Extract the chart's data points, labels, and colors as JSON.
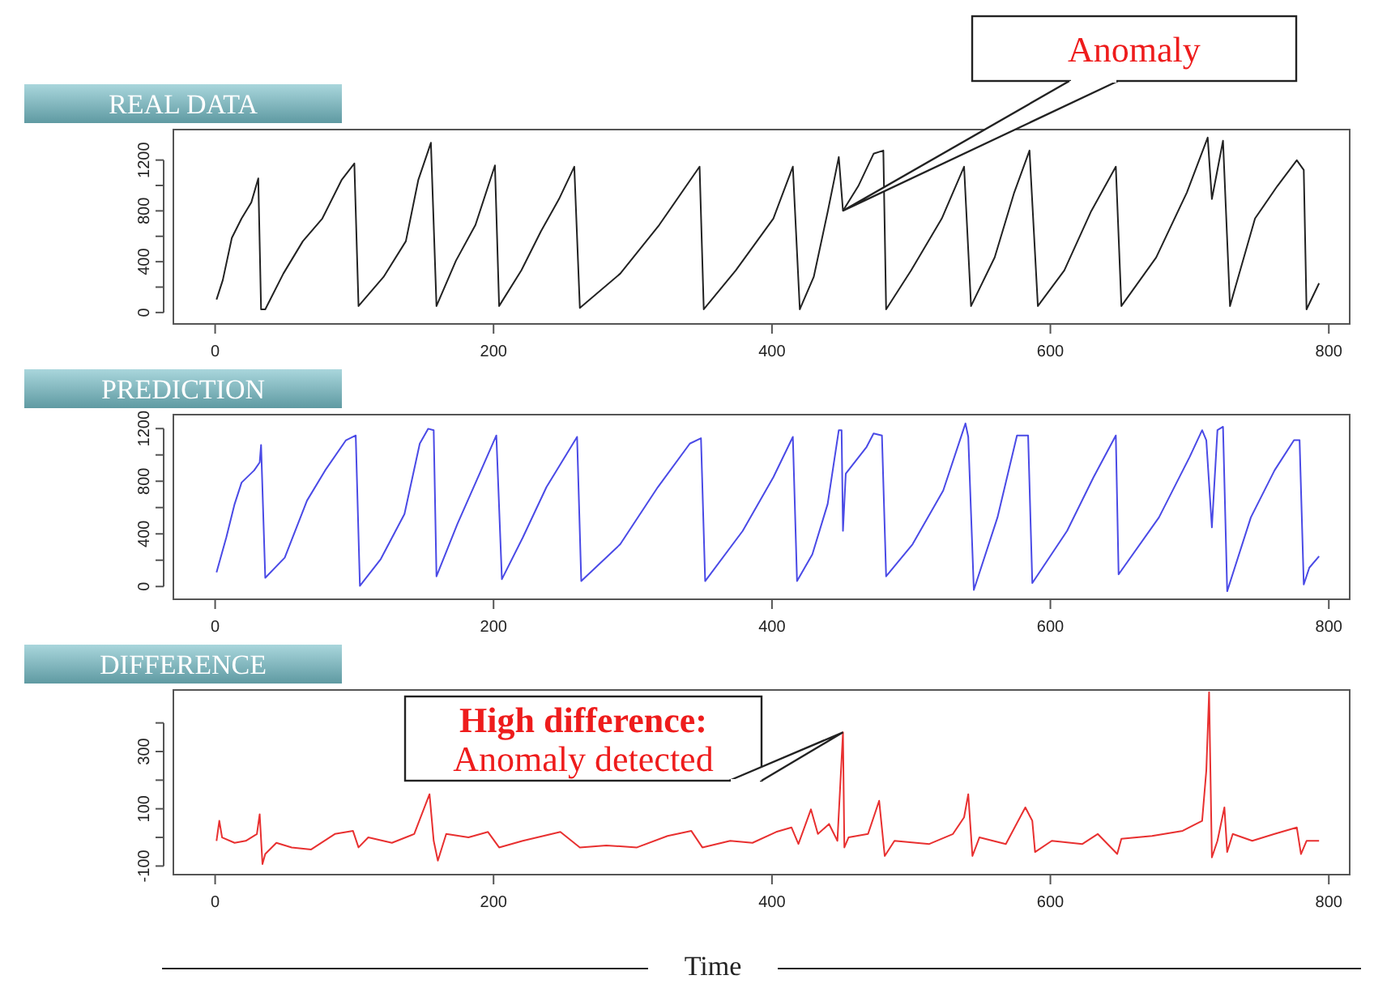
{
  "chart_data": [
    {
      "type": "line",
      "title": "REAL DATA",
      "xlim": [
        -30,
        815
      ],
      "ylim": [
        -90,
        1440
      ],
      "xticks": [
        0,
        200,
        400,
        600,
        800
      ],
      "yticks": [
        0,
        {
          "value": 200,
          "label": null
        },
        400,
        {
          "value": 600,
          "label": null
        },
        800,
        {
          "value": 1000,
          "label": null
        },
        1200
      ],
      "grid": false,
      "marker": "none",
      "line_style": "solid",
      "annotations": [
        {
          "text": "Anomaly",
          "x": 451,
          "y": 801
        }
      ],
      "series": [
        {
          "color": "#222222",
          "x": [
            1,
            5.5,
            12,
            19,
            26,
            31,
            33,
            36,
            49,
            63,
            77,
            91,
            100,
            103,
            121,
            137,
            146,
            155,
            159,
            173,
            187,
            201,
            204,
            220,
            234,
            247,
            258,
            262,
            291,
            319,
            348,
            351,
            374,
            401,
            415,
            420,
            430,
            440,
            448,
            451,
            462,
            473,
            480,
            482,
            500,
            522,
            538,
            543,
            560,
            574,
            585,
            591,
            610,
            629,
            647,
            651,
            676,
            698,
            713,
            716,
            724,
            729,
            747,
            763,
            777,
            782,
            784,
            793
          ],
          "values": [
            102,
            255,
            587,
            740,
            867,
            1056,
            25,
            25,
            306,
            561,
            740,
            1046,
            1173,
            51,
            280,
            561,
            1046,
            1336,
            51,
            408,
            689,
            1158,
            51,
            332,
            638,
            893,
            1148,
            36,
            306,
            689,
            1148,
            25,
            332,
            740,
            1148,
            25,
            280,
            791,
            1224,
            801,
            995,
            1250,
            1275,
            25,
            332,
            740,
            1148,
            51,
            434,
            944,
            1275,
            51,
            332,
            791,
            1148,
            51,
            434,
            944,
            1377,
            893,
            1352,
            51,
            740,
            995,
            1199,
            1122,
            25,
            230
          ]
        }
      ]
    },
    {
      "type": "line",
      "title": "PREDICTION",
      "xlim": [
        -30,
        815
      ],
      "ylim": [
        -97,
        1306
      ],
      "xticks": [
        0,
        200,
        400,
        600,
        800
      ],
      "yticks": [
        0,
        {
          "value": 200,
          "label": null
        },
        400,
        {
          "value": 600,
          "label": null
        },
        800,
        {
          "value": 1000,
          "label": null
        },
        1200
      ],
      "grid": false,
      "marker": "none",
      "line_style": "solid",
      "series": [
        {
          "color": "#4a4ae6",
          "x": [
            1,
            8,
            14,
            19,
            28,
            32,
            33,
            36,
            50,
            66,
            79,
            94,
            101,
            104,
            119,
            136,
            147,
            153,
            157,
            159,
            174,
            191,
            202,
            206,
            221,
            238,
            260,
            263,
            291,
            318,
            341,
            349,
            352,
            379,
            401,
            415,
            418,
            429,
            440,
            448,
            450,
            451,
            453,
            468,
            473,
            479,
            482,
            501,
            523,
            539,
            541,
            545,
            562,
            576,
            584,
            587,
            612,
            631,
            647,
            649,
            678,
            700,
            709,
            712,
            716,
            720,
            724,
            727,
            744,
            761,
            775,
            779,
            782,
            786,
            793
          ],
          "values": [
            107,
            372,
            627,
            790,
            882,
            943,
            1076,
            66,
            219,
            653,
            882,
            1112,
            1148,
            5,
            209,
            551,
            1086,
            1199,
            1188,
            77,
            474,
            882,
            1148,
            56,
            372,
            755,
            1137,
            41,
            321,
            755,
            1086,
            1127,
            41,
            423,
            831,
            1137,
            41,
            245,
            627,
            1188,
            1188,
            423,
            857,
            1061,
            1163,
            1148,
            77,
            321,
            729,
            1239,
            1137,
            -26,
            525,
            1148,
            1148,
            26,
            423,
            831,
            1148,
            92,
            525,
            984,
            1188,
            1112,
            449,
            1188,
            1214,
            -36,
            525,
            882,
            1112,
            1112,
            15,
            143,
            230
          ]
        }
      ]
    },
    {
      "type": "line",
      "title": "DIFFERENCE",
      "xlabel": "Time",
      "xlim": [
        -30,
        815
      ],
      "ylim": [
        -130,
        515
      ],
      "xticks": [
        0,
        200,
        400,
        600,
        800
      ],
      "yticks": [
        -100,
        {
          "value": 0,
          "label": null
        },
        100,
        {
          "value": 200,
          "label": null
        },
        300,
        {
          "value": 400,
          "label": null
        }
      ],
      "grid": false,
      "marker": "none",
      "line_style": "solid",
      "annotations": [
        {
          "text": "High difference: Anomaly detected",
          "x": 451,
          "y": 367
        }
      ],
      "series": [
        {
          "color": "#e83030",
          "x": [
            1,
            3,
            5,
            14,
            22,
            30,
            32,
            34,
            36,
            44,
            55,
            69,
            86,
            99,
            103,
            110,
            127,
            143,
            154,
            157,
            160,
            166,
            182,
            196,
            204,
            221,
            248,
            262,
            281,
            303,
            325,
            342,
            350,
            370,
            386,
            403,
            414,
            419,
            428,
            433,
            441,
            447,
            451,
            452,
            455,
            469,
            477,
            481,
            488,
            513,
            530,
            538,
            541,
            544,
            549,
            568,
            582,
            587,
            589,
            601,
            623,
            634,
            648,
            651,
            673,
            695,
            709,
            712,
            714,
            716,
            720,
            725,
            727,
            731,
            745,
            761,
            777,
            780,
            784,
            793
          ],
          "values": [
            -12,
            58,
            0,
            -19,
            -12,
            12,
            81,
            -93,
            -58,
            -19,
            -35,
            -42,
            12,
            23,
            -35,
            0,
            -19,
            12,
            151,
            -12,
            -81,
            12,
            0,
            19,
            -35,
            -12,
            19,
            -35,
            -28,
            -35,
            5,
            23,
            -35,
            -12,
            -19,
            19,
            35,
            -23,
            98,
            12,
            47,
            -12,
            367,
            -35,
            0,
            12,
            128,
            -65,
            -12,
            -23,
            12,
            70,
            151,
            -65,
            0,
            -23,
            105,
            58,
            -51,
            -12,
            -23,
            12,
            -58,
            -5,
            5,
            23,
            58,
            233,
            507,
            -70,
            -12,
            105,
            -51,
            12,
            -12,
            12,
            35,
            -58,
            -12,
            -12
          ]
        }
      ]
    }
  ]
}
